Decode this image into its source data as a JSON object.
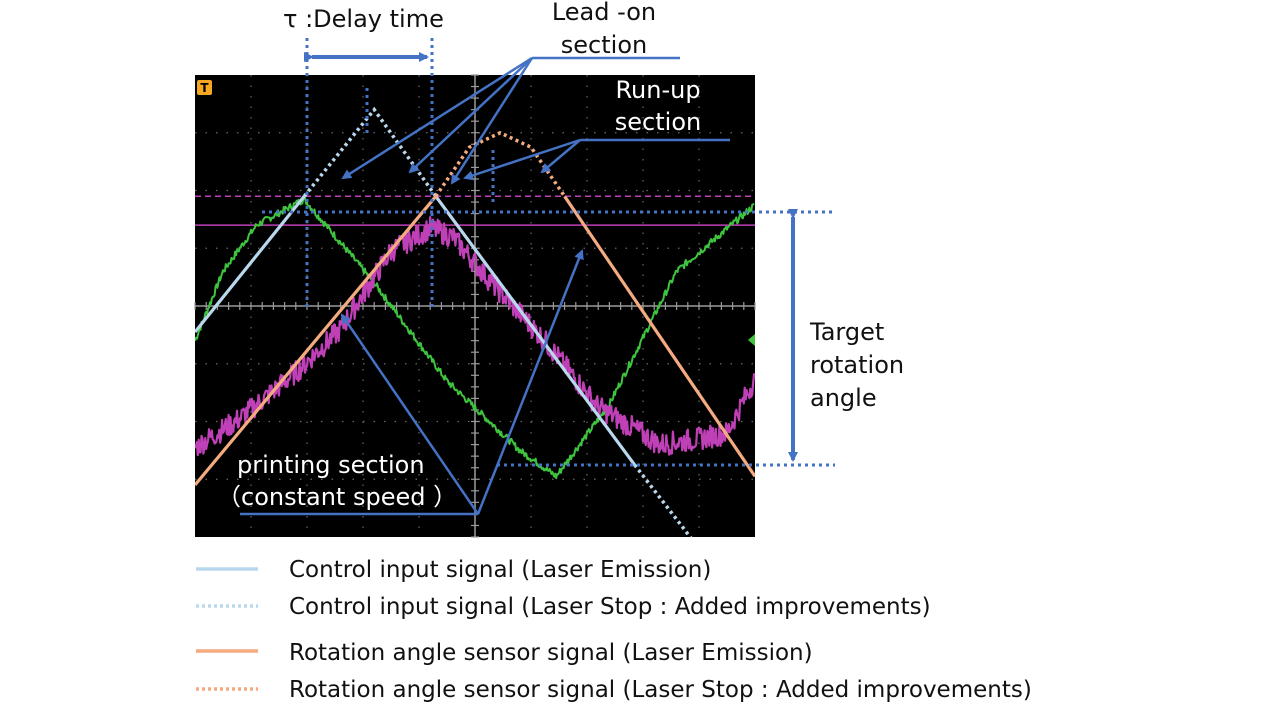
{
  "chart_data": {
    "type": "line",
    "title": "",
    "xlabel": "",
    "ylabel": "",
    "xlim": [
      0,
      10
    ],
    "ylim": [
      -4,
      4
    ],
    "grid": true,
    "legend_position": "bottom",
    "trigger_marker": "T",
    "series": [
      {
        "name": "Control input signal (Laser Emission)",
        "color": "#b9d8ee",
        "style": "solid",
        "segments": [
          {
            "x": [
              0,
              1.95
            ],
            "y": [
              -0.45,
              1.9
            ]
          },
          {
            "x": [
              4.3,
              7.85
            ],
            "y": [
              1.9,
              -2.75
            ]
          }
        ]
      },
      {
        "name": "Control input signal (Laser Stop : Added improvements)",
        "color": "#b9d8ee",
        "style": "dotted",
        "segments": [
          {
            "x": [
              1.95,
              3.2,
              4.3
            ],
            "y": [
              1.9,
              3.4,
              1.9
            ]
          },
          {
            "x": [
              7.85,
              9.2
            ],
            "y": [
              -2.75,
              -4.45
            ]
          }
        ]
      },
      {
        "name": "Rotation angle sensor signal (Laser Emission)",
        "color": "#f4ab80",
        "style": "solid",
        "segments": [
          {
            "x": [
              0,
              4.3
            ],
            "y": [
              -3.1,
              1.9
            ]
          },
          {
            "x": [
              6.6,
              10
            ],
            "y": [
              1.9,
              -2.95
            ]
          }
        ]
      },
      {
        "name": "Rotation angle sensor signal (Laser Stop : Added improvements)",
        "color": "#f4ab80",
        "style": "dotted",
        "segments": [
          {
            "x": [
              4.3,
              4.9,
              5.45,
              6.0,
              6.6
            ],
            "y": [
              1.9,
              2.75,
              3.0,
              2.75,
              1.9
            ]
          }
        ]
      }
    ],
    "raw_traces": [
      {
        "color": "#3ec43e",
        "x": [
          0,
          0.5,
          1.1,
          1.95,
          3.2,
          4.5,
          5.8,
          6.45,
          7.4,
          8.6,
          10
        ],
        "y": [
          -0.6,
          0.6,
          1.4,
          1.85,
          0.4,
          -1.3,
          -2.5,
          -2.95,
          -1.7,
          0.6,
          1.75
        ]
      },
      {
        "color": "#c040b8",
        "x": [
          0,
          0.8,
          1.8,
          2.6,
          3.5,
          4.2,
          4.6,
          5.3,
          6.2,
          7.2,
          7.8,
          8.3,
          9.0,
          9.5,
          10
        ],
        "y": [
          -2.45,
          -1.95,
          -1.15,
          -0.4,
          0.95,
          1.35,
          1.2,
          0.4,
          -0.55,
          -1.75,
          -2.1,
          -2.4,
          -2.3,
          -2.2,
          -1.25
        ]
      }
    ],
    "reference_levels": [
      {
        "y": 1.9,
        "color": "#c040b8",
        "style": "dashed"
      },
      {
        "y": 1.4,
        "color": "#c040b8",
        "style": "solid"
      }
    ]
  },
  "annotations": {
    "delay_time": "τ :Delay time",
    "lead_on_1": "Lead -on",
    "lead_on_2": "section",
    "run_up_1": "Run-up",
    "run_up_2": "section",
    "target_1": "Target",
    "target_2": "rotation",
    "target_3": "angle",
    "printing_1": "printing section",
    "printing_2": "（constant speed ）",
    "accent_color": "#4472c4"
  },
  "legend": [
    {
      "label": "Control input signal (Laser Emission)",
      "color": "#b9d8ee",
      "style": "solid"
    },
    {
      "label": "Control input signal (Laser Stop : Added improvements)",
      "color": "#b9d8ee",
      "style": "dotted"
    },
    {
      "label": "Rotation angle sensor signal (Laser Emission)",
      "color": "#f4ab80",
      "style": "solid"
    },
    {
      "label": "Rotation angle sensor signal (Laser Stop : Added improvements)",
      "color": "#f4ab80",
      "style": "dotted"
    }
  ]
}
